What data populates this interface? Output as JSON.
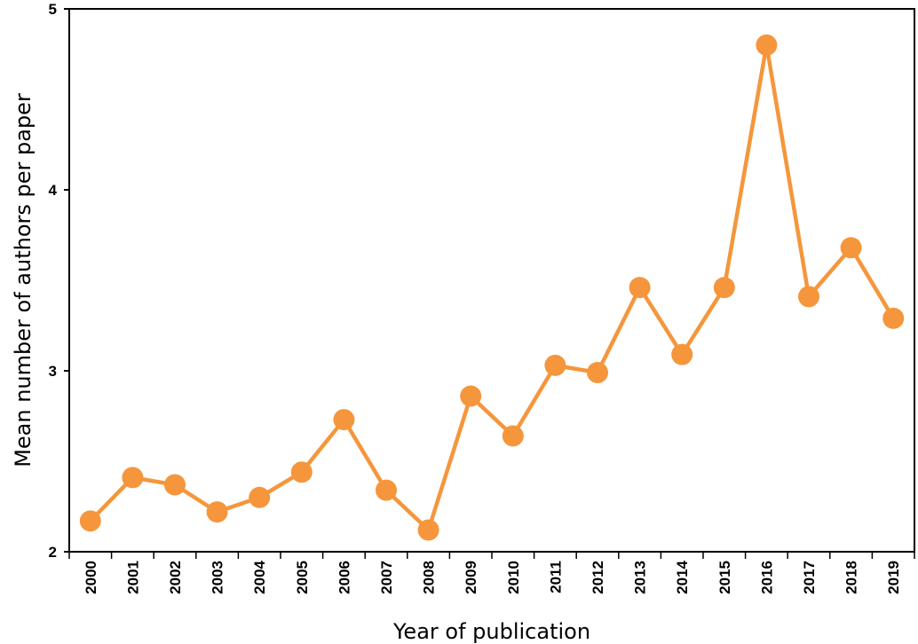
{
  "chart_data": {
    "type": "line",
    "title": "",
    "xlabel": "Year of publication",
    "ylabel": "Mean number of authors per paper",
    "x": [
      "2000",
      "2001",
      "2002",
      "2003",
      "2004",
      "2005",
      "2006",
      "2007",
      "2008",
      "2009",
      "2010",
      "2011",
      "2012",
      "2013",
      "2014",
      "2015",
      "2016",
      "2017",
      "2018",
      "2019"
    ],
    "series": [
      {
        "name": "",
        "values": [
          2.17,
          2.41,
          2.37,
          2.22,
          2.3,
          2.44,
          2.73,
          2.34,
          2.12,
          2.86,
          2.64,
          3.03,
          2.99,
          3.46,
          3.09,
          3.46,
          4.8,
          3.41,
          3.68,
          3.29
        ]
      }
    ],
    "ylim": [
      2,
      5
    ],
    "yticks": [
      "2",
      "3",
      "4",
      "5"
    ],
    "grid": false,
    "legend": "none",
    "colors": {
      "line": "#f5963c",
      "marker": "#f5963c",
      "axis": "#000000"
    }
  }
}
